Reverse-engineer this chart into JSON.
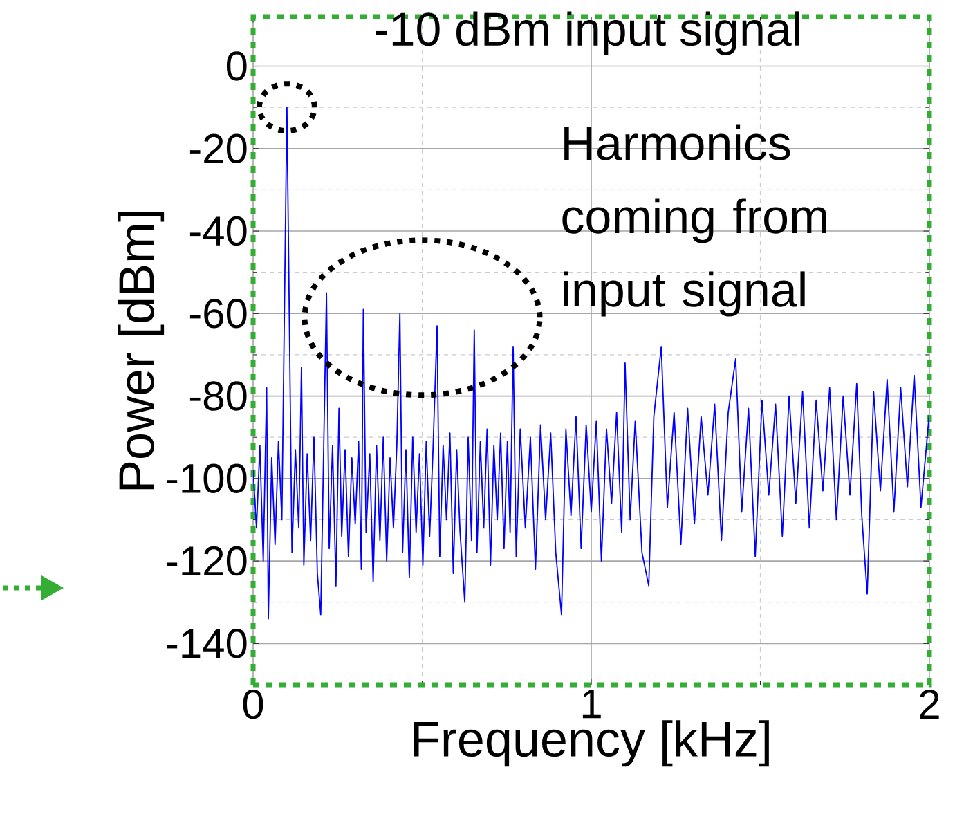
{
  "chart_data": {
    "type": "line",
    "xlabel": "Frequency [kHz]",
    "ylabel": "Power [dBm]",
    "annotations": [
      "-10 dBm input signal",
      "Harmonics coming from input signal"
    ],
    "xlim": [
      0,
      2
    ],
    "ylim": [
      -150,
      12
    ],
    "xticks": [
      0,
      1,
      2
    ],
    "yticks": [
      0,
      -20,
      -40,
      -60,
      -80,
      -100,
      -120,
      -140
    ],
    "grid": true,
    "x": [
      0.0,
      0.01,
      0.02,
      0.03,
      0.04,
      0.045,
      0.055,
      0.065,
      0.075,
      0.085,
      0.1,
      0.115,
      0.125,
      0.135,
      0.143,
      0.15,
      0.16,
      0.17,
      0.18,
      0.19,
      0.2,
      0.208,
      0.217,
      0.225,
      0.235,
      0.245,
      0.254,
      0.262,
      0.272,
      0.282,
      0.292,
      0.302,
      0.312,
      0.32,
      0.326,
      0.334,
      0.345,
      0.355,
      0.365,
      0.375,
      0.385,
      0.395,
      0.405,
      0.415,
      0.425,
      0.434,
      0.442,
      0.452,
      0.462,
      0.472,
      0.482,
      0.492,
      0.502,
      0.512,
      0.522,
      0.532,
      0.544,
      0.552,
      0.562,
      0.572,
      0.582,
      0.592,
      0.602,
      0.612,
      0.626,
      0.636,
      0.646,
      0.654,
      0.662,
      0.672,
      0.682,
      0.692,
      0.702,
      0.712,
      0.722,
      0.732,
      0.742,
      0.752,
      0.76,
      0.769,
      0.778,
      0.79,
      0.805,
      0.82,
      0.835,
      0.85,
      0.865,
      0.88,
      0.895,
      0.912,
      0.925,
      0.94,
      0.955,
      0.97,
      0.985,
      1.0,
      1.015,
      1.03,
      1.045,
      1.06,
      1.075,
      1.09,
      1.1,
      1.115,
      1.13,
      1.15,
      1.17,
      1.185,
      1.207,
      1.225,
      1.245,
      1.265,
      1.285,
      1.305,
      1.325,
      1.345,
      1.365,
      1.385,
      1.405,
      1.427,
      1.445,
      1.465,
      1.485,
      1.505,
      1.525,
      1.545,
      1.565,
      1.585,
      1.605,
      1.625,
      1.645,
      1.665,
      1.685,
      1.705,
      1.725,
      1.745,
      1.765,
      1.785,
      1.8,
      1.816,
      1.835,
      1.855,
      1.875,
      1.895,
      1.915,
      1.935,
      1.955,
      1.975,
      2.0
    ],
    "series": [
      {
        "color": "#0000ff",
        "values": [
          -98,
          -112,
          -92,
          -120,
          -78,
          -134,
          -95,
          -116,
          -91,
          -110,
          -10,
          -118,
          -93,
          -112,
          -73,
          -121,
          -94,
          -115,
          -90,
          -123,
          -133,
          -96,
          -55,
          -117,
          -92,
          -126,
          -83,
          -114,
          -93,
          -119,
          -95,
          -111,
          -91,
          -122,
          -59,
          -113,
          -94,
          -125,
          -92,
          -115,
          -90,
          -120,
          -95,
          -112,
          -92,
          -60,
          -118,
          -93,
          -124,
          -90,
          -113,
          -94,
          -121,
          -91,
          -114,
          -93,
          -63,
          -119,
          -92,
          -110,
          -89,
          -123,
          -93,
          -113,
          -130,
          -90,
          -115,
          -64,
          -118,
          -91,
          -112,
          -88,
          -121,
          -92,
          -110,
          -89,
          -117,
          -91,
          -113,
          -68,
          -119,
          -88,
          -112,
          -90,
          -122,
          -87,
          -110,
          -89,
          -118,
          -133,
          -88,
          -109,
          -85,
          -117,
          -87,
          -108,
          -86,
          -120,
          -88,
          -106,
          -84,
          -113,
          -72,
          -110,
          -86,
          -118,
          -126,
          -85,
          -68,
          -107,
          -84,
          -116,
          -83,
          -111,
          -85,
          -104,
          -82,
          -115,
          -84,
          -71,
          -108,
          -83,
          -119,
          -81,
          -104,
          -82,
          -114,
          -80,
          -106,
          -79,
          -112,
          -81,
          -103,
          -78,
          -110,
          -80,
          -104,
          -77,
          -109,
          -128,
          -79,
          -103,
          -76,
          -108,
          -78,
          -102,
          -75,
          -107,
          -84
        ]
      }
    ]
  }
}
